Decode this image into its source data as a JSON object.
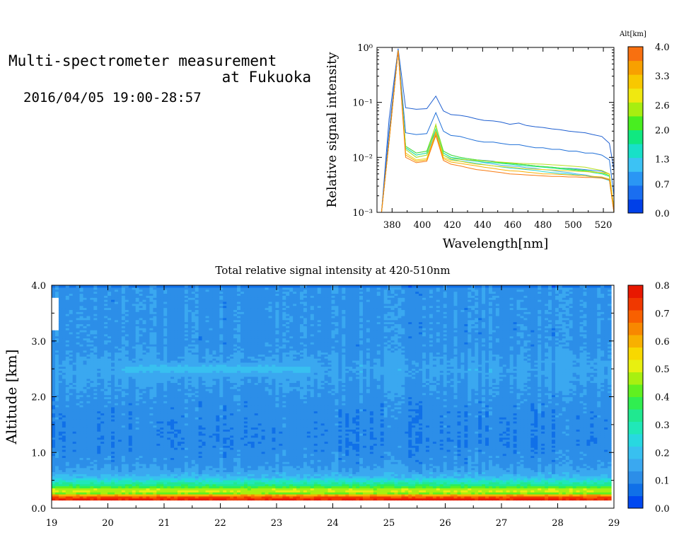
{
  "header": {
    "title_line1": "Multi-spectrometer measurement",
    "title_line2": "at Fukuoka",
    "datetime": "2016/04/05 19:00-28:57"
  },
  "chart_data": [
    {
      "type": "line",
      "title": "",
      "xlabel": "Wavelength[nm]",
      "ylabel": "Relative signal intensity",
      "yscale": "log",
      "xlim": [
        370,
        527
      ],
      "ylim": [
        0.001,
        1
      ],
      "x_ticks": [
        "380",
        "400",
        "420",
        "440",
        "460",
        "480",
        "500",
        "520"
      ],
      "y_ticks": [
        "10⁻³",
        "10⁻²",
        "10⁻¹",
        "10⁰"
      ],
      "x": [
        373,
        378,
        384,
        389,
        396,
        403,
        409,
        414,
        419,
        425,
        430,
        436,
        441,
        447,
        452,
        458,
        464,
        469,
        475,
        480,
        486,
        491,
        497,
        502,
        508,
        513,
        519,
        524,
        527
      ],
      "series": [
        {
          "color": "#1f5fd0",
          "values": [
            0.001,
            0.05,
            0.95,
            0.08,
            0.075,
            0.077,
            0.13,
            0.07,
            0.06,
            0.058,
            0.055,
            0.05,
            0.047,
            0.046,
            0.044,
            0.04,
            0.042,
            0.038,
            0.036,
            0.035,
            0.033,
            0.032,
            0.03,
            0.029,
            0.028,
            0.026,
            0.024,
            0.018,
            0.006
          ]
        },
        {
          "color": "#2070d8",
          "values": [
            0.001,
            0.03,
            0.9,
            0.028,
            0.026,
            0.027,
            0.065,
            0.03,
            0.025,
            0.024,
            0.022,
            0.02,
            0.019,
            0.019,
            0.018,
            0.017,
            0.017,
            0.016,
            0.015,
            0.015,
            0.014,
            0.014,
            0.013,
            0.013,
            0.012,
            0.012,
            0.011,
            0.009,
            0.002
          ]
        },
        {
          "color": "#2a88ea",
          "values": [
            0.001,
            0.02,
            0.88,
            0.016,
            0.012,
            0.013,
            0.03,
            0.013,
            0.011,
            0.01,
            0.0095,
            0.009,
            0.0088,
            0.0085,
            0.008,
            0.0078,
            0.0075,
            0.0073,
            0.007,
            0.0068,
            0.0066,
            0.0064,
            0.0063,
            0.0062,
            0.006,
            0.0058,
            0.0056,
            0.005,
            0.0012
          ]
        },
        {
          "color": "#3fb2f0",
          "values": [
            0.001,
            0.02,
            0.88,
            0.015,
            0.011,
            0.012,
            0.027,
            0.012,
            0.01,
            0.0092,
            0.0088,
            0.0085,
            0.008,
            0.0076,
            0.0072,
            0.007,
            0.0068,
            0.0065,
            0.0063,
            0.006,
            0.0058,
            0.0055,
            0.0053,
            0.005,
            0.0048,
            0.0045,
            0.0043,
            0.004,
            0.0011
          ]
        },
        {
          "color": "#28d8d0",
          "values": [
            0.001,
            0.02,
            0.88,
            0.014,
            0.01,
            0.011,
            0.025,
            0.011,
            0.0092,
            0.0086,
            0.0082,
            0.0078,
            0.0074,
            0.007,
            0.0067,
            0.0064,
            0.0062,
            0.006,
            0.0058,
            0.0055,
            0.0053,
            0.0051,
            0.005,
            0.0048,
            0.0046,
            0.0044,
            0.0042,
            0.0038,
            0.001
          ]
        },
        {
          "color": "#18e890",
          "values": [
            0.001,
            0.02,
            0.88,
            0.015,
            0.011,
            0.012,
            0.033,
            0.012,
            0.01,
            0.0095,
            0.009,
            0.0085,
            0.0082,
            0.008,
            0.0078,
            0.0075,
            0.0072,
            0.007,
            0.0068,
            0.0066,
            0.0064,
            0.0062,
            0.006,
            0.0058,
            0.0056,
            0.0053,
            0.005,
            0.0045,
            0.0011
          ]
        },
        {
          "color": "#50e830",
          "values": [
            0.001,
            0.02,
            0.88,
            0.016,
            0.012,
            0.013,
            0.038,
            0.013,
            0.011,
            0.01,
            0.0095,
            0.009,
            0.0087,
            0.0083,
            0.008,
            0.0078,
            0.0075,
            0.0073,
            0.007,
            0.0068,
            0.0066,
            0.0064,
            0.0062,
            0.006,
            0.0058,
            0.0055,
            0.0052,
            0.0047,
            0.0011
          ]
        },
        {
          "color": "#b8e020",
          "values": [
            0.001,
            0.02,
            0.88,
            0.014,
            0.01,
            0.011,
            0.04,
            0.011,
            0.0095,
            0.0092,
            0.009,
            0.0088,
            0.0086,
            0.0084,
            0.0082,
            0.008,
            0.0078,
            0.0077,
            0.0076,
            0.0075,
            0.0073,
            0.0072,
            0.007,
            0.0068,
            0.0066,
            0.0062,
            0.0058,
            0.005,
            0.0012
          ]
        },
        {
          "color": "#f0d010",
          "values": [
            0.001,
            0.02,
            0.88,
            0.012,
            0.009,
            0.0095,
            0.03,
            0.01,
            0.0088,
            0.0085,
            0.008,
            0.0075,
            0.0073,
            0.007,
            0.0068,
            0.0066,
            0.0064,
            0.0062,
            0.0061,
            0.006,
            0.0059,
            0.0058,
            0.0057,
            0.0056,
            0.0055,
            0.0054,
            0.0053,
            0.005,
            0.0012
          ]
        },
        {
          "color": "#f8b000",
          "values": [
            0.001,
            0.02,
            0.88,
            0.011,
            0.0085,
            0.009,
            0.028,
            0.0095,
            0.0082,
            0.0078,
            0.0074,
            0.007,
            0.0066,
            0.0063,
            0.006,
            0.0057,
            0.0056,
            0.0054,
            0.0052,
            0.005,
            0.005,
            0.0049,
            0.0048,
            0.0047,
            0.0046,
            0.0045,
            0.0044,
            0.004,
            0.001
          ]
        },
        {
          "color": "#f87a10",
          "values": [
            0.001,
            0.02,
            0.88,
            0.01,
            0.008,
            0.0085,
            0.025,
            0.0088,
            0.0075,
            0.007,
            0.0065,
            0.006,
            0.0058,
            0.0055,
            0.0053,
            0.005,
            0.0049,
            0.0048,
            0.0047,
            0.0046,
            0.0045,
            0.0045,
            0.0044,
            0.0044,
            0.0043,
            0.0043,
            0.0042,
            0.0039,
            0.001
          ]
        }
      ],
      "colorbar": {
        "title": "Alt[km]",
        "tick_labels": [
          "0.0",
          "0.7",
          "1.3",
          "2.0",
          "2.6",
          "3.3",
          "4.0"
        ],
        "colors": [
          "#0040e8",
          "#1a6ef0",
          "#2a96f4",
          "#3cc2f4",
          "#18e0c8",
          "#10e880",
          "#48ee20",
          "#a8ee10",
          "#f0e810",
          "#f8c800",
          "#f8a000",
          "#f87010"
        ]
      }
    },
    {
      "type": "heatmap",
      "title": "Total relative signal intensity at 420-510nm",
      "xlabel": "",
      "ylabel": "Altitude [km]",
      "xlim": [
        19,
        29
      ],
      "ylim": [
        0,
        4
      ],
      "x_ticks": [
        "19",
        "20",
        "21",
        "22",
        "23",
        "24",
        "25",
        "26",
        "27",
        "28",
        "29"
      ],
      "y_ticks": [
        "0.0",
        "1.0",
        "2.0",
        "3.0",
        "4.0"
      ],
      "data_x_range": [
        19,
        28.95
      ],
      "profile": [
        {
          "alt": 0.05,
          "value": 0.0
        },
        {
          "alt": 0.12,
          "value": 0.0
        },
        {
          "alt": 0.15,
          "value": 0.78
        },
        {
          "alt": 0.2,
          "value": 0.72
        },
        {
          "alt": 0.24,
          "value": 0.6
        },
        {
          "alt": 0.28,
          "value": 0.4
        },
        {
          "alt": 0.32,
          "value": 0.52
        },
        {
          "alt": 0.37,
          "value": 0.42
        },
        {
          "alt": 0.42,
          "value": 0.34
        },
        {
          "alt": 0.48,
          "value": 0.28
        },
        {
          "alt": 0.55,
          "value": 0.2
        },
        {
          "alt": 0.65,
          "value": 0.15
        },
        {
          "alt": 0.8,
          "value": 0.12
        },
        {
          "alt": 1.2,
          "value": 0.1
        },
        {
          "alt": 1.8,
          "value": 0.11
        },
        {
          "alt": 2.2,
          "value": 0.13
        },
        {
          "alt": 2.5,
          "value": 0.15
        },
        {
          "alt": 2.9,
          "value": 0.12
        },
        {
          "alt": 3.5,
          "value": 0.12
        },
        {
          "alt": 3.95,
          "value": 0.12
        },
        {
          "alt": 4.0,
          "value": 0.05
        }
      ],
      "elevated_layer": {
        "x_range": [
          20.3,
          23.6
        ],
        "alt": 2.5,
        "value": 0.2
      },
      "colorbar": {
        "tick_labels": [
          "0.0",
          "0.1",
          "0.2",
          "0.3",
          "0.4",
          "0.5",
          "0.6",
          "0.7",
          "0.8"
        ],
        "colors": [
          "#0048f0",
          "#1070e8",
          "#2c8ee8",
          "#3aa8f0",
          "#38c0f0",
          "#28d8e0",
          "#20e8b8",
          "#20e890",
          "#30ee50",
          "#60f020",
          "#a8f010",
          "#e8f010",
          "#f8d800",
          "#f8b000",
          "#f88800",
          "#f86000",
          "#f03800",
          "#e81800"
        ]
      }
    }
  ]
}
